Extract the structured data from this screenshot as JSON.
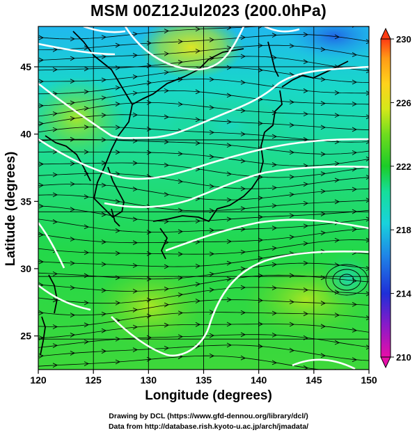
{
  "title": "MSM 00Z12Jul2023 (200.0hPa)",
  "x_axis": {
    "label": "Longitude (degrees)",
    "range": [
      120,
      150
    ],
    "ticks": [
      "120",
      "125",
      "130",
      "135",
      "140",
      "145",
      "150"
    ]
  },
  "y_axis": {
    "label": "Latitude  (degrees)",
    "range": [
      22.5,
      48
    ],
    "ticks": [
      "25",
      "30",
      "35",
      "40",
      "45"
    ]
  },
  "colorbar": {
    "min": 210,
    "max": 230,
    "ticks": [
      "210",
      "214",
      "218",
      "222",
      "226",
      "230"
    ],
    "colors": [
      "#e60fa8",
      "#7a18c8",
      "#1f2fd8",
      "#1f86e6",
      "#19d2dc",
      "#16de9a",
      "#1ccc28",
      "#6fdc1e",
      "#d4e81a",
      "#ffd21c",
      "#ff9a16",
      "#ff3c14"
    ]
  },
  "credits": {
    "line1": "Drawing by DCL (https://www.gfd-dennou.org/library/dcl/)",
    "line2": "Data from http://database.rish.kyoto-u.ac.jp/arch/jmadata/"
  }
}
